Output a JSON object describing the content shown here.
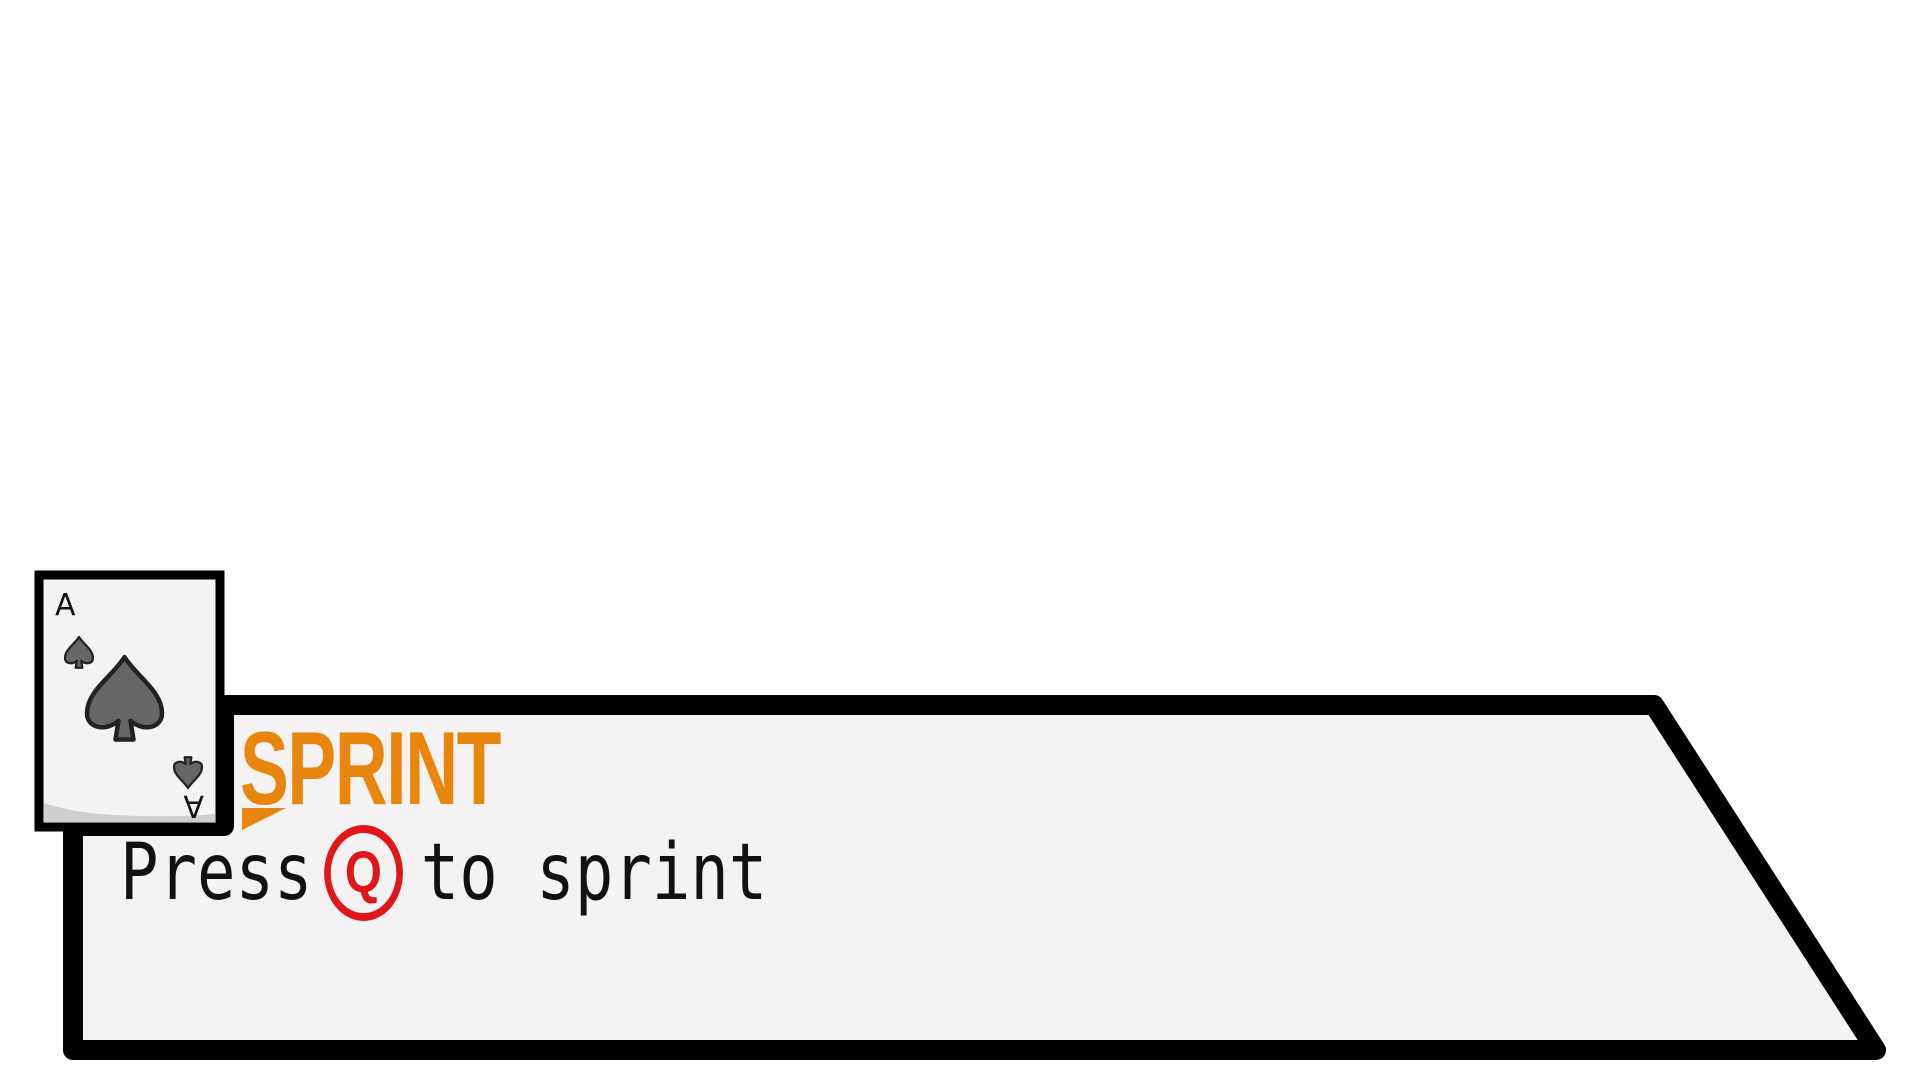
{
  "tutorial": {
    "title": "SPRINT",
    "prompt_before": "Press",
    "key": "Q",
    "prompt_after": "to sprint"
  },
  "card": {
    "rank": "A",
    "suit": "spade-icon"
  },
  "colors": {
    "title": "#e8850c",
    "key_ring": "#e0161b",
    "panel_fill": "#f4f2f3",
    "outline": "#000000",
    "card_fill": "#f4f2f3",
    "suit_fill": "#666666"
  }
}
